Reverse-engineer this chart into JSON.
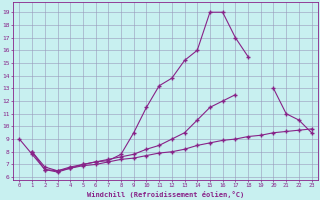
{
  "line1_x": [
    0,
    1,
    2,
    3,
    4,
    5,
    6,
    7,
    8,
    9,
    10,
    11,
    12,
    13,
    14,
    15,
    16,
    17,
    18
  ],
  "line1_y": [
    9.0,
    7.8,
    6.6,
    6.4,
    6.7,
    7.0,
    7.2,
    7.3,
    7.8,
    9.5,
    11.5,
    13.2,
    13.8,
    15.2,
    16.0,
    19.0,
    19.0,
    17.0,
    15.5
  ],
  "line2_x": [
    1,
    2,
    3,
    4,
    5,
    6,
    7,
    8,
    9,
    10,
    11,
    12,
    13,
    14,
    15,
    16,
    17,
    20,
    21,
    22,
    23
  ],
  "line2_y": [
    8.0,
    6.8,
    6.5,
    6.8,
    7.0,
    7.2,
    7.4,
    7.6,
    7.8,
    8.2,
    8.5,
    9.0,
    9.5,
    10.5,
    11.5,
    12.0,
    12.5,
    13.0,
    11.0,
    10.5,
    9.5
  ],
  "line3_x": [
    1,
    2,
    3,
    4,
    5,
    6,
    7,
    8,
    9,
    10,
    11,
    12,
    13,
    14,
    15,
    16,
    17,
    18,
    19,
    20,
    21,
    22,
    23
  ],
  "line3_y": [
    8.0,
    6.6,
    6.5,
    6.7,
    6.9,
    7.0,
    7.2,
    7.4,
    7.5,
    7.7,
    7.9,
    8.0,
    8.2,
    8.5,
    8.7,
    8.9,
    9.0,
    9.2,
    9.3,
    9.5,
    9.6,
    9.7,
    9.8
  ],
  "line_color": "#882288",
  "bg_color": "#c8f0f0",
  "grid_color": "#9999bb",
  "xlabel": "Windchill (Refroidissement éolien,°C)",
  "xlim": [
    -0.5,
    23.5
  ],
  "ylim": [
    5.8,
    19.8
  ],
  "xticks": [
    0,
    1,
    2,
    3,
    4,
    5,
    6,
    7,
    8,
    9,
    10,
    11,
    12,
    13,
    14,
    15,
    16,
    17,
    18,
    19,
    20,
    21,
    22,
    23
  ],
  "yticks": [
    6,
    7,
    8,
    9,
    10,
    11,
    12,
    13,
    14,
    15,
    16,
    17,
    18,
    19
  ]
}
